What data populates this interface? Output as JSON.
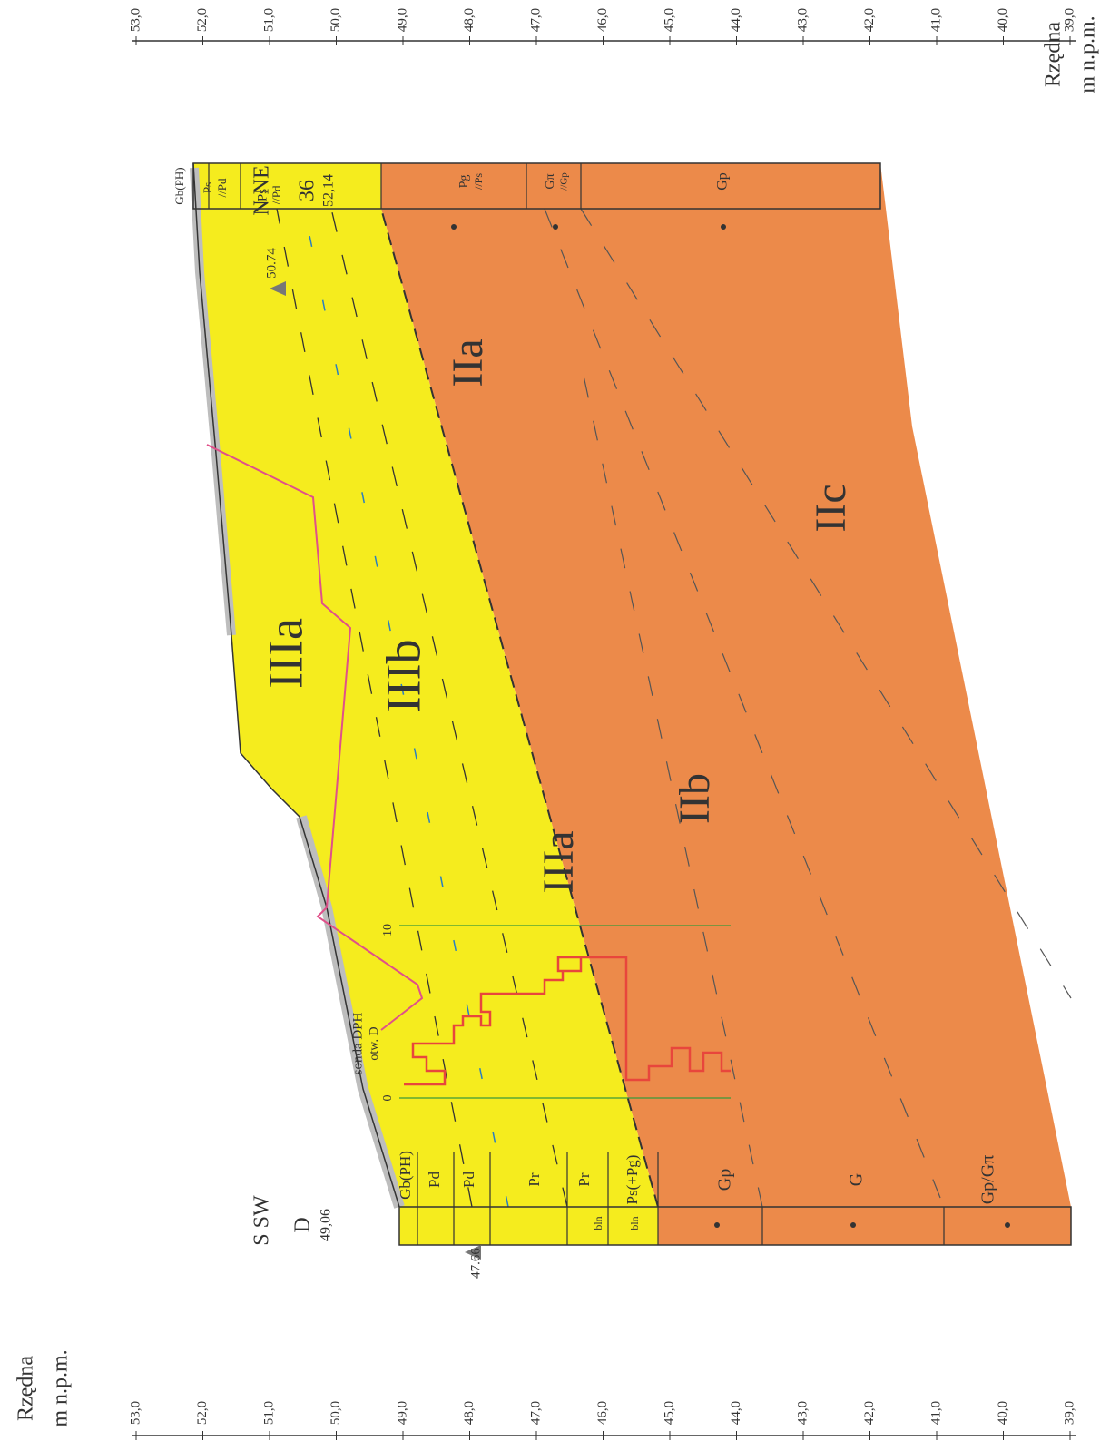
{
  "axis": {
    "title": [
      "Rzędna",
      "m n.p.m."
    ],
    "ticks": [
      "53,0",
      "52,0",
      "51,0",
      "50,0",
      "49,0",
      "48,0",
      "47,0",
      "46,0",
      "45,0",
      "44,0",
      "43,0",
      "42,0",
      "41,0",
      "40,0",
      "39,0"
    ]
  },
  "boreholes": [
    {
      "direction": "S SW",
      "name": "D",
      "elevation": "49,06",
      "water_level": "47.66",
      "layers": [
        "Gb(PH)",
        "Pd",
        "Pd",
        "Pr",
        "Pr",
        "Ps(+Pg)",
        "Gp",
        "G",
        "Gp/Gπ"
      ],
      "notes": [
        "bln",
        "bln"
      ]
    },
    {
      "direction": "N NE",
      "name": "36",
      "elevation": "52,14",
      "water_level": "50.74",
      "layers": [
        "Gb(PH)",
        "Ps",
        "//Pd",
        "Ps",
        "//Pd",
        "Pg",
        "//Ps",
        "Gπ",
        "//Gp",
        "Gp"
      ]
    }
  ],
  "sounding": {
    "labels": [
      "sonda DPH",
      "otw. D"
    ],
    "scale": [
      "0",
      "10"
    ]
  },
  "zones": [
    "IIIa",
    "IIIb",
    "IIIa",
    "IIb",
    "IIa",
    "IIc"
  ]
}
